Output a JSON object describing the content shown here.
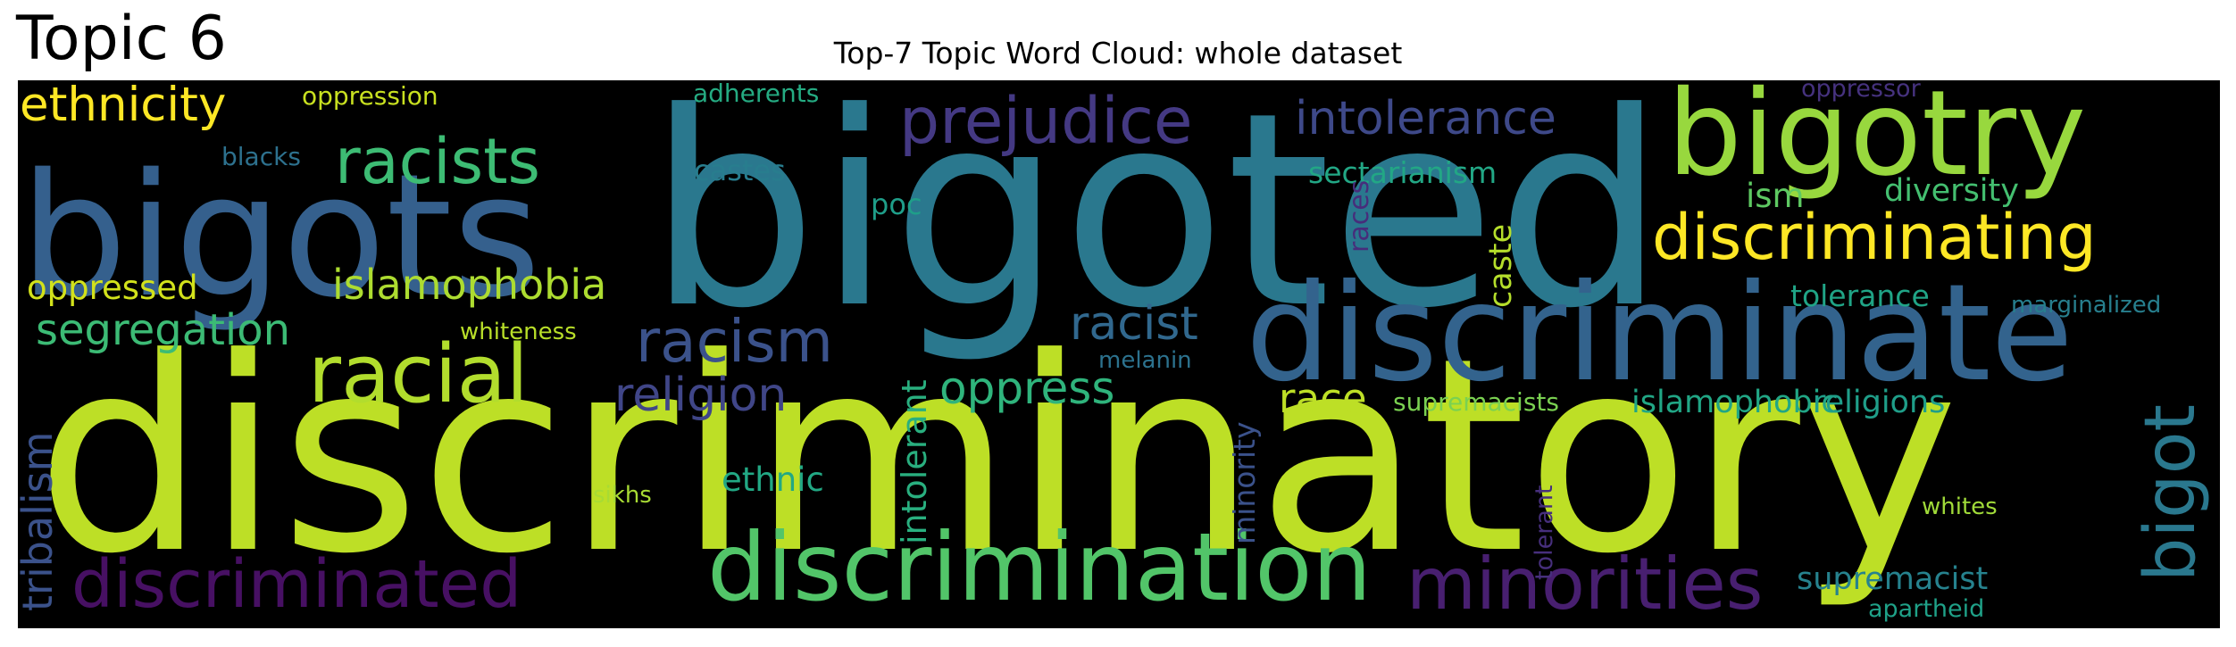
{
  "page": {
    "topic_heading": "Topic 6",
    "title": "Top-7 Topic Word Cloud: whole dataset"
  },
  "cloud": {
    "background": "#000000",
    "words": [
      {
        "text": "discriminatory",
        "color": "#bddf26"
      },
      {
        "text": "bigoted",
        "color": "#2a788e"
      },
      {
        "text": "bigots",
        "color": "#35608d"
      },
      {
        "text": "discriminate",
        "color": "#33638d"
      },
      {
        "text": "bigotry",
        "color": "#98d83e"
      },
      {
        "text": "discrimination",
        "color": "#52c569"
      },
      {
        "text": "discriminating",
        "color": "#fde725"
      },
      {
        "text": "discriminated",
        "color": "#471063"
      },
      {
        "text": "minorities",
        "color": "#481f70"
      },
      {
        "text": "racial",
        "color": "#b2dd2d"
      },
      {
        "text": "prejudice",
        "color": "#443983"
      },
      {
        "text": "racists",
        "color": "#3dbc74"
      },
      {
        "text": "racism",
        "color": "#3b528b"
      },
      {
        "text": "bigot",
        "color": "#2a788e"
      },
      {
        "text": "intolerance",
        "color": "#3e4989"
      },
      {
        "text": "ethnicity",
        "color": "#fde725"
      },
      {
        "text": "religion",
        "color": "#404688"
      },
      {
        "text": "oppress",
        "color": "#2fb47c"
      },
      {
        "text": "racist",
        "color": "#31688e"
      },
      {
        "text": "islamophobia",
        "color": "#addc30"
      },
      {
        "text": "segregation",
        "color": "#3cbb75"
      },
      {
        "text": "race",
        "color": "#bddf26"
      },
      {
        "text": "supremacist",
        "color": "#26828e"
      },
      {
        "text": "tribalism",
        "color": "#3b528b"
      },
      {
        "text": "sectarianism",
        "color": "#22a785"
      },
      {
        "text": "islamophobic",
        "color": "#21a685"
      },
      {
        "text": "religions",
        "color": "#1f9e89"
      },
      {
        "text": "oppressed",
        "color": "#d2e21b"
      },
      {
        "text": "intolerant",
        "color": "#29af7f"
      },
      {
        "text": "ethnic",
        "color": "#22a884"
      },
      {
        "text": "minority",
        "color": "#3b528b"
      },
      {
        "text": "caste",
        "color": "#b5de2b"
      },
      {
        "text": "tolerance",
        "color": "#20a486"
      },
      {
        "text": "diversity",
        "color": "#44bf70"
      },
      {
        "text": "ism",
        "color": "#5ec962"
      },
      {
        "text": "castes",
        "color": "#287d8e"
      },
      {
        "text": "races",
        "color": "#472d7b"
      },
      {
        "text": "poc",
        "color": "#1f9e89"
      },
      {
        "text": "whites",
        "color": "#a0da39"
      },
      {
        "text": "marginalized",
        "color": "#277f8e"
      },
      {
        "text": "oppression",
        "color": "#c8e020"
      },
      {
        "text": "adherents",
        "color": "#25ab82"
      },
      {
        "text": "blacks",
        "color": "#2d718e"
      },
      {
        "text": "supremacists",
        "color": "#7ad151"
      },
      {
        "text": "whiteness",
        "color": "#b8de29"
      },
      {
        "text": "sikhs",
        "color": "#a8db34"
      },
      {
        "text": "melanin",
        "color": "#2c728e"
      },
      {
        "text": "tolerant",
        "color": "#472f7d"
      },
      {
        "text": "oppressor",
        "color": "#46327e"
      },
      {
        "text": "apartheid",
        "color": "#1fa188"
      }
    ]
  }
}
